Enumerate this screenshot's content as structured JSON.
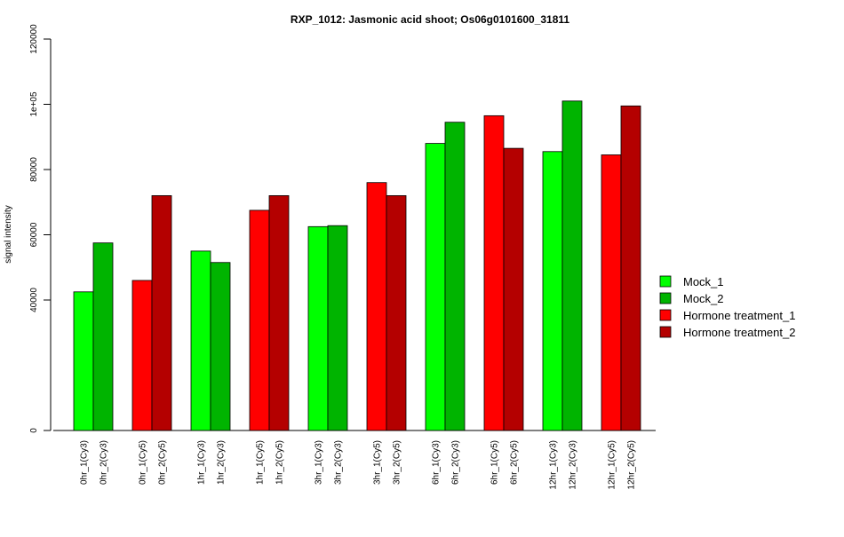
{
  "chart_data": {
    "type": "bar",
    "title": "RXP_1012: Jasmonic acid shoot; Os06g0101600_31811",
    "xlabel": "",
    "ylabel": "signal intensity",
    "ylim": [
      0,
      120000
    ],
    "yticks": [
      {
        "value": 0,
        "label": "0"
      },
      {
        "value": 40000,
        "label": "40000"
      },
      {
        "value": 60000,
        "label": "60000"
      },
      {
        "value": 80000,
        "label": "80000"
      },
      {
        "value": 100000,
        "label": "1e+05"
      },
      {
        "value": 120000,
        "label": "120000"
      }
    ],
    "grid": false,
    "legend_position": "right",
    "series": [
      {
        "name": "Mock_1",
        "color": "#00ff00"
      },
      {
        "name": "Mock_2",
        "color": "#00b400"
      },
      {
        "name": "Hormone treatment_1",
        "color": "#ff0000"
      },
      {
        "name": "Hormone treatment_2",
        "color": "#b40000"
      }
    ],
    "bars": [
      {
        "label": "0hr_1(Cy3)",
        "value": 42500,
        "series": 0
      },
      {
        "label": "0hr_2(Cy3)",
        "value": 57500,
        "series": 1
      },
      {
        "label": "0hr_1(Cy5)",
        "value": 46000,
        "series": 2
      },
      {
        "label": "0hr_2(Cy5)",
        "value": 72000,
        "series": 3
      },
      {
        "label": "1hr_1(Cy3)",
        "value": 55000,
        "series": 0
      },
      {
        "label": "1hr_2(Cy3)",
        "value": 51500,
        "series": 1
      },
      {
        "label": "1hr_1(Cy5)",
        "value": 67500,
        "series": 2
      },
      {
        "label": "1hr_2(Cy5)",
        "value": 72000,
        "series": 3
      },
      {
        "label": "3hr_1(Cy3)",
        "value": 62500,
        "series": 0
      },
      {
        "label": "3hr_2(Cy3)",
        "value": 62800,
        "series": 1
      },
      {
        "label": "3hr_1(Cy5)",
        "value": 76000,
        "series": 2
      },
      {
        "label": "3hr_2(Cy5)",
        "value": 72000,
        "series": 3
      },
      {
        "label": "6hr_1(Cy3)",
        "value": 88000,
        "series": 0
      },
      {
        "label": "6hr_2(Cy3)",
        "value": 94500,
        "series": 1
      },
      {
        "label": "6hr_1(Cy5)",
        "value": 96500,
        "series": 2
      },
      {
        "label": "6hr_2(Cy5)",
        "value": 86500,
        "series": 3
      },
      {
        "label": "12hr_1(Cy3)",
        "value": 85500,
        "series": 0
      },
      {
        "label": "12hr_2(Cy3)",
        "value": 101000,
        "series": 1
      },
      {
        "label": "12hr_1(Cy5)",
        "value": 84500,
        "series": 2
      },
      {
        "label": "12hr_2(Cy5)",
        "value": 99500,
        "series": 3
      }
    ]
  }
}
